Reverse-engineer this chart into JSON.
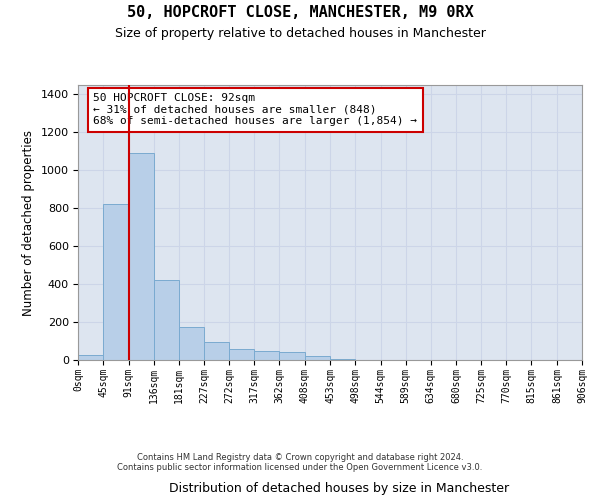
{
  "title": "50, HOPCROFT CLOSE, MANCHESTER, M9 0RX",
  "subtitle": "Size of property relative to detached houses in Manchester",
  "xlabel": "Distribution of detached houses by size in Manchester",
  "ylabel": "Number of detached properties",
  "bar_values": [
    25,
    820,
    1090,
    420,
    175,
    95,
    60,
    50,
    40,
    20,
    5,
    2,
    1,
    0,
    0,
    0,
    0,
    0,
    0,
    0
  ],
  "bar_edges": [
    0,
    45,
    91,
    136,
    181,
    227,
    272,
    317,
    362,
    408,
    453,
    498,
    544,
    589,
    634,
    680,
    725,
    770,
    815,
    861,
    906
  ],
  "bar_color": "#b8cfe8",
  "bar_edgecolor": "#7aaad0",
  "property_size": 92,
  "annotation_line1": "50 HOPCROFT CLOSE: 92sqm",
  "annotation_line2": "← 31% of detached houses are smaller (848)",
  "annotation_line3": "68% of semi-detached houses are larger (1,854) →",
  "vline_color": "#cc0000",
  "annotation_box_color": "#cc0000",
  "ylim": [
    0,
    1450
  ],
  "xlim": [
    0,
    906
  ],
  "tick_labels": [
    "0sqm",
    "45sqm",
    "91sqm",
    "136sqm",
    "181sqm",
    "227sqm",
    "272sqm",
    "317sqm",
    "362sqm",
    "408sqm",
    "453sqm",
    "498sqm",
    "544sqm",
    "589sqm",
    "634sqm",
    "680sqm",
    "725sqm",
    "770sqm",
    "815sqm",
    "861sqm",
    "906sqm"
  ],
  "tick_positions": [
    0,
    45,
    91,
    136,
    181,
    227,
    272,
    317,
    362,
    408,
    453,
    498,
    544,
    589,
    634,
    680,
    725,
    770,
    815,
    861,
    906
  ],
  "footer_line1": "Contains HM Land Registry data © Crown copyright and database right 2024.",
  "footer_line2": "Contains public sector information licensed under the Open Government Licence v3.0.",
  "background_color": "#ffffff",
  "grid_color": "#ccd5e8",
  "ax_bg_color": "#dde5f0"
}
